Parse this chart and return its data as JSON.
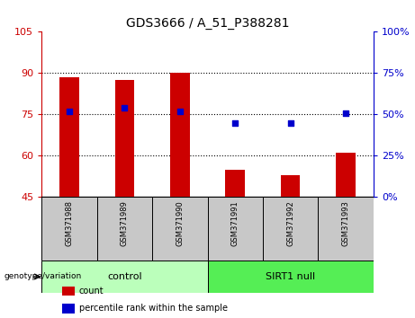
{
  "title": "GDS3666 / A_51_P388281",
  "samples": [
    "GSM371988",
    "GSM371989",
    "GSM371990",
    "GSM371991",
    "GSM371992",
    "GSM371993"
  ],
  "counts": [
    88.5,
    87.5,
    90.2,
    55.0,
    53.0,
    61.0
  ],
  "percentile_ranks_pct": [
    52,
    54,
    52,
    45,
    45,
    51
  ],
  "ylim_left": [
    45,
    105
  ],
  "ylim_right": [
    0,
    100
  ],
  "yticks_left": [
    45,
    60,
    75,
    90,
    105
  ],
  "yticks_right": [
    0,
    25,
    50,
    75,
    100
  ],
  "baseline": 45,
  "groups": [
    {
      "label": "control",
      "start": 0,
      "end": 3,
      "color": "#bbffbb"
    },
    {
      "label": "SIRT1 null",
      "start": 3,
      "end": 6,
      "color": "#55ee55"
    }
  ],
  "bar_color": "#cc0000",
  "dot_color": "#0000cc",
  "grid_color": "#000000",
  "background_color": "#ffffff",
  "tick_label_color_left": "#cc0000",
  "tick_label_color_right": "#0000cc",
  "bar_width": 0.35,
  "legend_items": [
    {
      "label": "count",
      "color": "#cc0000"
    },
    {
      "label": "percentile rank within the sample",
      "color": "#0000cc"
    }
  ],
  "genotype_label": "genotype/variation"
}
